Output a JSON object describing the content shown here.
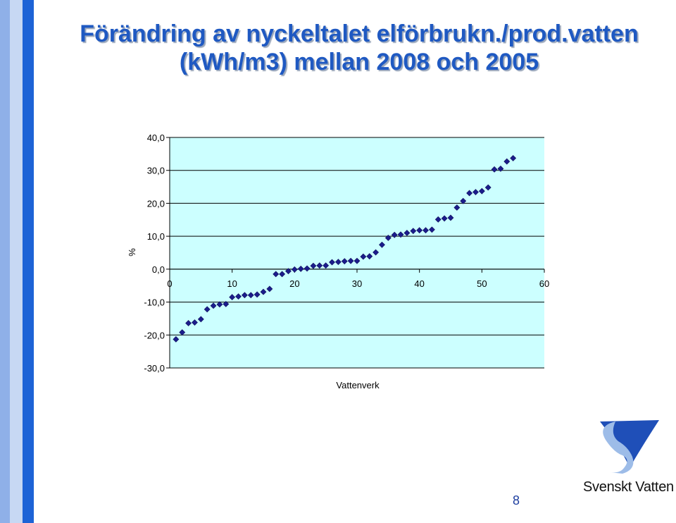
{
  "slide": {
    "title_line1": "Förändring av nyckeltalet elförbrukn./prod.vatten",
    "title_line2": "(kWh/m3) mellan 2008 och 2005",
    "page_number": "8",
    "logo_text": "Svenskt Vatten"
  },
  "colors": {
    "accent": "#1f59c2",
    "plot_background": "#ccffff",
    "marker": "#1b1c8c"
  },
  "chart_data": {
    "type": "scatter",
    "xlabel": "Vattenverk",
    "ylabel": "%",
    "xlim": [
      0,
      60
    ],
    "ylim": [
      -30,
      40
    ],
    "x_ticks": [
      0,
      10,
      20,
      30,
      40,
      50,
      60
    ],
    "x_tick_labels": [
      "0",
      "10",
      "20",
      "30",
      "40",
      "50",
      "60"
    ],
    "y_ticks": [
      40,
      30,
      20,
      10,
      0,
      -10,
      -20,
      -30
    ],
    "y_tick_labels": [
      "40,0",
      "30,0",
      "20,0",
      "10,0",
      "0,0",
      "-10,0",
      "-20,0",
      "-30,0"
    ],
    "grid": "horizontal",
    "legend": "none",
    "points": [
      [
        1,
        -21.3
      ],
      [
        2,
        -19.2
      ],
      [
        3,
        -16.4
      ],
      [
        4,
        -16.2
      ],
      [
        5,
        -15.2
      ],
      [
        6,
        -12.2
      ],
      [
        7,
        -11.1
      ],
      [
        8,
        -10.7
      ],
      [
        9,
        -10.6
      ],
      [
        10,
        -8.5
      ],
      [
        11,
        -8.3
      ],
      [
        12,
        -7.9
      ],
      [
        13,
        -7.9
      ],
      [
        14,
        -7.7
      ],
      [
        15,
        -6.9
      ],
      [
        16,
        -6.0
      ],
      [
        17,
        -1.5
      ],
      [
        18,
        -1.5
      ],
      [
        19,
        -0.6
      ],
      [
        20,
        -0.1
      ],
      [
        21,
        0.1
      ],
      [
        22,
        0.2
      ],
      [
        23,
        1.0
      ],
      [
        24,
        1.1
      ],
      [
        25,
        1.1
      ],
      [
        26,
        2.1
      ],
      [
        27,
        2.2
      ],
      [
        28,
        2.4
      ],
      [
        29,
        2.5
      ],
      [
        30,
        2.5
      ],
      [
        31,
        3.8
      ],
      [
        32,
        3.9
      ],
      [
        33,
        5.1
      ],
      [
        34,
        7.4
      ],
      [
        35,
        9.5
      ],
      [
        36,
        10.4
      ],
      [
        37,
        10.5
      ],
      [
        38,
        11.0
      ],
      [
        39,
        11.6
      ],
      [
        40,
        11.8
      ],
      [
        41,
        11.8
      ],
      [
        42,
        12.0
      ],
      [
        43,
        15.1
      ],
      [
        44,
        15.4
      ],
      [
        45,
        15.6
      ],
      [
        46,
        18.7
      ],
      [
        47,
        20.7
      ],
      [
        48,
        23.1
      ],
      [
        49,
        23.4
      ],
      [
        50,
        23.7
      ],
      [
        51,
        24.8
      ],
      [
        52,
        30.3
      ],
      [
        53,
        30.5
      ],
      [
        54,
        32.7
      ],
      [
        55,
        33.7
      ]
    ]
  }
}
